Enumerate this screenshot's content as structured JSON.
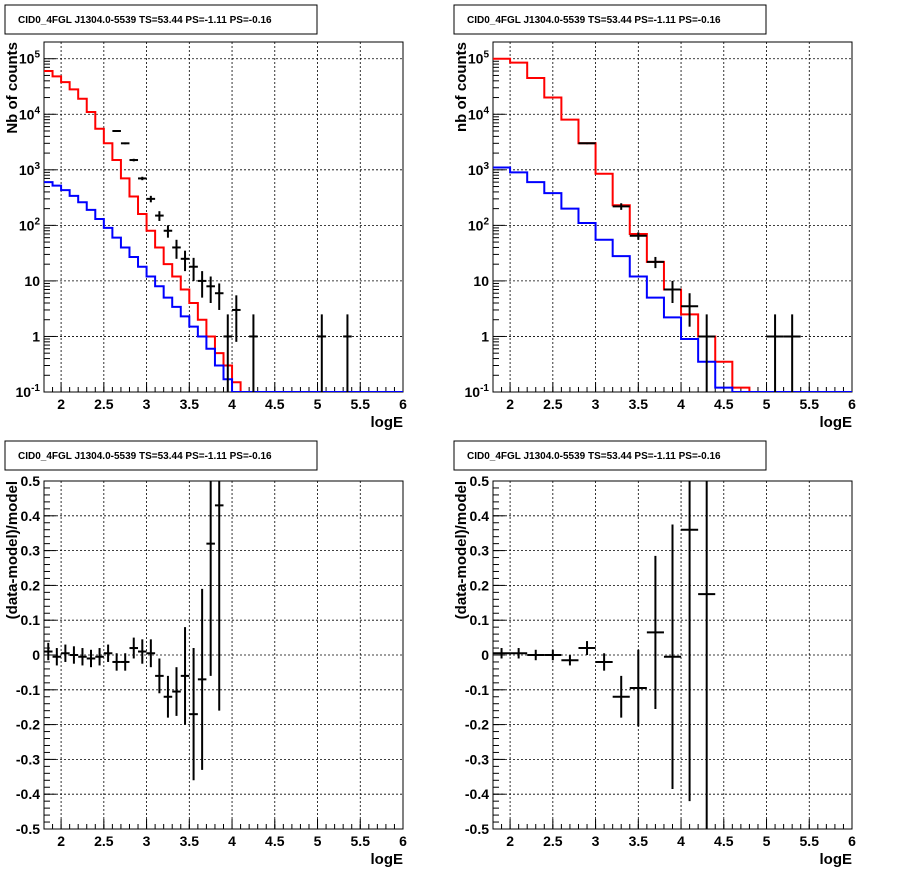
{
  "chart_data": [
    {
      "type": "line",
      "title": "CID0_4FGL J1304.0-5539 TS=53.44 PS=-1.11 PS=-0.16",
      "xlabel": "logE",
      "ylabel": "Nb of counts",
      "yscale": "log",
      "xlim": [
        1.8,
        6.0
      ],
      "ylim": [
        0.1,
        200000
      ],
      "xticks": [
        "2",
        "2.5",
        "3",
        "3.5",
        "4",
        "4.5",
        "5",
        "5.5",
        "6"
      ],
      "yticks": [
        "10^-1",
        "1",
        "10",
        "10^2",
        "10^3",
        "10^4",
        "10^5"
      ],
      "grid": true,
      "bin_width": 0.1,
      "series": [
        {
          "color": "#ff0000",
          "style": "step",
          "x": [
            1.8,
            1.9,
            2.0,
            2.1,
            2.2,
            2.3,
            2.4,
            2.5,
            2.6,
            2.7,
            2.8,
            2.9,
            3.0,
            3.1,
            3.2,
            3.3,
            3.4,
            3.5,
            3.6,
            3.7,
            3.8,
            3.9,
            4.0,
            4.1,
            4.2,
            4.3,
            4.4,
            4.5,
            4.6,
            4.7,
            4.8,
            4.9,
            5.0,
            5.1,
            5.2,
            5.3,
            5.4,
            5.5,
            5.6,
            5.7,
            5.8,
            5.9
          ],
          "y": [
            60000,
            48000,
            38000,
            28000,
            19000,
            11000,
            5500,
            3000,
            1500,
            700,
            330,
            160,
            80,
            40,
            20,
            12,
            7,
            4,
            2,
            1,
            0.5,
            0.3,
            0.15,
            0.08,
            0.08,
            0.08,
            0.08,
            0.08,
            0.08,
            0.08,
            0.08,
            0.08,
            0.08,
            0.08,
            0.08,
            0.08,
            0.08,
            0.08,
            0.08,
            0.08,
            0.08,
            0.08
          ]
        },
        {
          "color": "#0000ff",
          "style": "step",
          "x": [
            1.8,
            1.9,
            2.0,
            2.1,
            2.2,
            2.3,
            2.4,
            2.5,
            2.6,
            2.7,
            2.8,
            2.9,
            3.0,
            3.1,
            3.2,
            3.3,
            3.4,
            3.5,
            3.6,
            3.7,
            3.8,
            3.9,
            4.0,
            4.1,
            4.2,
            4.3,
            4.4,
            4.5,
            4.6,
            4.7,
            4.8,
            4.9,
            5.0,
            5.1,
            5.2,
            5.3,
            5.4,
            5.5,
            5.6,
            5.7,
            5.8,
            5.9
          ],
          "y": [
            600,
            520,
            430,
            340,
            260,
            190,
            130,
            90,
            60,
            40,
            27,
            18,
            12,
            8,
            5,
            3.4,
            2.3,
            1.5,
            1,
            0.6,
            0.3,
            0.17,
            0.1,
            0.08,
            0.08,
            0.08,
            0.08,
            0.08,
            0.08,
            0.08,
            0.08,
            0.08,
            0.08,
            0.08,
            0.08,
            0.08,
            0.08,
            0.08,
            0.08,
            0.08,
            0.08,
            0.08
          ]
        },
        {
          "color": "#000000",
          "style": "points",
          "x": [
            2.65,
            2.75,
            2.85,
            2.95,
            3.05,
            3.15,
            3.25,
            3.35,
            3.45,
            3.55,
            3.65,
            3.75,
            3.85,
            3.95,
            4.05,
            4.25,
            5.05,
            5.35
          ],
          "y": [
            5000,
            3000,
            1500,
            700,
            300,
            150,
            80,
            40,
            25,
            18,
            10,
            8,
            6,
            1,
            3,
            1,
            1,
            1
          ],
          "yerr_low": [
            150,
            110,
            80,
            50,
            40,
            30,
            20,
            15,
            10,
            8,
            5,
            4,
            3,
            0.9,
            2.2,
            0.9,
            0.9,
            0.9
          ],
          "yerr_high": [
            150,
            110,
            80,
            50,
            40,
            30,
            20,
            15,
            10,
            8,
            5,
            4,
            3,
            1.5,
            2.5,
            1.5,
            1.5,
            1.5
          ]
        }
      ]
    },
    {
      "type": "line",
      "title": "CID0_4FGL J1304.0-5539 TS=53.44 PS=-1.11 PS=-0.16",
      "xlabel": "logE",
      "ylabel": "nb of counts",
      "yscale": "log",
      "xlim": [
        1.8,
        6.0
      ],
      "ylim": [
        0.1,
        200000
      ],
      "xticks": [
        "2",
        "2.5",
        "3",
        "3.5",
        "4",
        "4.5",
        "5",
        "5.5",
        "6"
      ],
      "yticks": [
        "10^-1",
        "1",
        "10",
        "10^2",
        "10^3",
        "10^4",
        "10^5"
      ],
      "grid": true,
      "bin_width": 0.2,
      "series": [
        {
          "color": "#ff0000",
          "style": "step",
          "x": [
            1.8,
            2.0,
            2.2,
            2.4,
            2.6,
            2.8,
            3.0,
            3.2,
            3.4,
            3.6,
            3.8,
            4.0,
            4.2,
            4.4,
            4.6,
            4.8,
            5.0,
            5.2,
            5.4,
            5.6,
            5.8
          ],
          "y": [
            100000,
            85000,
            45000,
            20000,
            8000,
            3000,
            850,
            230,
            70,
            22,
            7,
            2.5,
            1,
            0.35,
            0.12,
            0.08,
            0.08,
            0.08,
            0.08,
            0.08,
            0.08
          ]
        },
        {
          "color": "#0000ff",
          "style": "step",
          "x": [
            1.8,
            2.0,
            2.2,
            2.4,
            2.6,
            2.8,
            3.0,
            3.2,
            3.4,
            3.6,
            3.8,
            4.0,
            4.2,
            4.4,
            4.6,
            4.8,
            5.0,
            5.2,
            5.4,
            5.6,
            5.8
          ],
          "y": [
            1100,
            900,
            600,
            380,
            200,
            110,
            55,
            28,
            12,
            5,
            2.2,
            0.9,
            0.35,
            0.12,
            0.08,
            0.08,
            0.08,
            0.08,
            0.08,
            0.08,
            0.08
          ]
        },
        {
          "color": "#000000",
          "style": "points",
          "x": [
            2.9,
            3.3,
            3.5,
            3.7,
            3.9,
            4.1,
            4.3,
            5.1,
            5.3
          ],
          "y": [
            3000,
            220,
            65,
            22,
            7,
            3.5,
            1,
            1,
            1
          ],
          "yerr_low": [
            100,
            30,
            10,
            5,
            3,
            2,
            0.9,
            0.9,
            0.9
          ],
          "yerr_high": [
            100,
            30,
            10,
            5,
            3,
            2.5,
            1.5,
            1.5,
            1.5
          ]
        }
      ]
    },
    {
      "type": "scatter",
      "title": "CID0_4FGL J1304.0-5539 TS=53.44 PS=-1.11 PS=-0.16",
      "xlabel": "logE",
      "ylabel": "(data-model)/model",
      "xlim": [
        1.8,
        6.0
      ],
      "ylim": [
        -0.5,
        0.5
      ],
      "xticks": [
        "2",
        "2.5",
        "3",
        "3.5",
        "4",
        "4.5",
        "5",
        "5.5",
        "6"
      ],
      "yticks": [
        "-0.5",
        "-0.4",
        "-0.3",
        "-0.2",
        "-0.1",
        "0",
        "0.1",
        "0.2",
        "0.3",
        "0.4",
        "0.5"
      ],
      "grid": true,
      "bin_width": 0.1,
      "series": [
        {
          "color": "#000000",
          "style": "points",
          "x": [
            1.85,
            1.95,
            2.05,
            2.15,
            2.25,
            2.35,
            2.45,
            2.55,
            2.65,
            2.75,
            2.85,
            2.95,
            3.05,
            3.15,
            3.25,
            3.35,
            3.45,
            3.55,
            3.65,
            3.75,
            3.85
          ],
          "y": [
            0.01,
            -0.005,
            0.005,
            0.0,
            -0.005,
            -0.01,
            -0.005,
            0.005,
            -0.02,
            -0.02,
            0.02,
            0.01,
            0.005,
            -0.06,
            -0.12,
            -0.105,
            -0.06,
            -0.17,
            -0.07,
            0.32,
            0.43
          ],
          "yerr": [
            0.025,
            0.025,
            0.025,
            0.025,
            0.025,
            0.025,
            0.025,
            0.025,
            0.025,
            0.025,
            0.03,
            0.035,
            0.04,
            0.05,
            0.06,
            0.07,
            0.14,
            0.19,
            0.26,
            0.38,
            0.59
          ]
        }
      ]
    },
    {
      "type": "scatter",
      "title": "CID0_4FGL J1304.0-5539 TS=53.44 PS=-1.11 PS=-0.16",
      "xlabel": "logE",
      "ylabel": "(data-model)/model",
      "xlim": [
        1.8,
        6.0
      ],
      "ylim": [
        -0.5,
        0.5
      ],
      "xticks": [
        "2",
        "2.5",
        "3",
        "3.5",
        "4",
        "4.5",
        "5",
        "5.5",
        "6"
      ],
      "yticks": [
        "-0.5",
        "-0.4",
        "-0.3",
        "-0.2",
        "-0.1",
        "0",
        "0.1",
        "0.2",
        "0.3",
        "0.4",
        "0.5"
      ],
      "grid": true,
      "bin_width": 0.2,
      "series": [
        {
          "color": "#000000",
          "style": "points",
          "x": [
            1.9,
            2.1,
            2.3,
            2.5,
            2.7,
            2.9,
            3.1,
            3.3,
            3.5,
            3.7,
            3.9,
            4.1,
            4.3
          ],
          "y": [
            0.005,
            0.005,
            0.0,
            0.0,
            -0.015,
            0.02,
            -0.02,
            -0.12,
            -0.095,
            0.065,
            -0.005,
            0.36,
            0.175
          ],
          "yerr": [
            0.015,
            0.015,
            0.015,
            0.015,
            0.015,
            0.02,
            0.025,
            0.06,
            0.11,
            0.22,
            0.38,
            0.78,
            0.9
          ]
        }
      ]
    }
  ]
}
